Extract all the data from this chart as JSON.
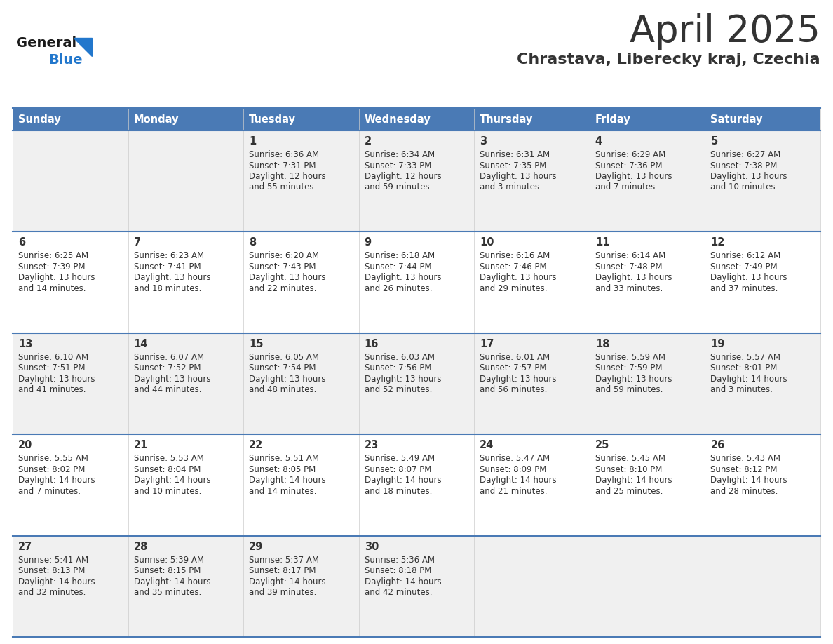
{
  "title": "April 2025",
  "subtitle": "Chrastava, Liberecky kraj, Czechia",
  "days_of_week": [
    "Sunday",
    "Monday",
    "Tuesday",
    "Wednesday",
    "Thursday",
    "Friday",
    "Saturday"
  ],
  "header_bg": "#4a7ab5",
  "header_text": "#ffffff",
  "row_bg_odd": "#f0f0f0",
  "row_bg_even": "#ffffff",
  "cell_text": "#333333",
  "line_color": "#4a7ab5",
  "logo_general_color": "#1a1a1a",
  "logo_blue_color": "#2277cc",
  "weeks": [
    {
      "days": [
        {
          "date": "",
          "sunrise": "",
          "sunset": "",
          "daylight1": "",
          "daylight2": ""
        },
        {
          "date": "",
          "sunrise": "",
          "sunset": "",
          "daylight1": "",
          "daylight2": ""
        },
        {
          "date": "1",
          "sunrise": "Sunrise: 6:36 AM",
          "sunset": "Sunset: 7:31 PM",
          "daylight1": "Daylight: 12 hours",
          "daylight2": "and 55 minutes."
        },
        {
          "date": "2",
          "sunrise": "Sunrise: 6:34 AM",
          "sunset": "Sunset: 7:33 PM",
          "daylight1": "Daylight: 12 hours",
          "daylight2": "and 59 minutes."
        },
        {
          "date": "3",
          "sunrise": "Sunrise: 6:31 AM",
          "sunset": "Sunset: 7:35 PM",
          "daylight1": "Daylight: 13 hours",
          "daylight2": "and 3 minutes."
        },
        {
          "date": "4",
          "sunrise": "Sunrise: 6:29 AM",
          "sunset": "Sunset: 7:36 PM",
          "daylight1": "Daylight: 13 hours",
          "daylight2": "and 7 minutes."
        },
        {
          "date": "5",
          "sunrise": "Sunrise: 6:27 AM",
          "sunset": "Sunset: 7:38 PM",
          "daylight1": "Daylight: 13 hours",
          "daylight2": "and 10 minutes."
        }
      ]
    },
    {
      "days": [
        {
          "date": "6",
          "sunrise": "Sunrise: 6:25 AM",
          "sunset": "Sunset: 7:39 PM",
          "daylight1": "Daylight: 13 hours",
          "daylight2": "and 14 minutes."
        },
        {
          "date": "7",
          "sunrise": "Sunrise: 6:23 AM",
          "sunset": "Sunset: 7:41 PM",
          "daylight1": "Daylight: 13 hours",
          "daylight2": "and 18 minutes."
        },
        {
          "date": "8",
          "sunrise": "Sunrise: 6:20 AM",
          "sunset": "Sunset: 7:43 PM",
          "daylight1": "Daylight: 13 hours",
          "daylight2": "and 22 minutes."
        },
        {
          "date": "9",
          "sunrise": "Sunrise: 6:18 AM",
          "sunset": "Sunset: 7:44 PM",
          "daylight1": "Daylight: 13 hours",
          "daylight2": "and 26 minutes."
        },
        {
          "date": "10",
          "sunrise": "Sunrise: 6:16 AM",
          "sunset": "Sunset: 7:46 PM",
          "daylight1": "Daylight: 13 hours",
          "daylight2": "and 29 minutes."
        },
        {
          "date": "11",
          "sunrise": "Sunrise: 6:14 AM",
          "sunset": "Sunset: 7:48 PM",
          "daylight1": "Daylight: 13 hours",
          "daylight2": "and 33 minutes."
        },
        {
          "date": "12",
          "sunrise": "Sunrise: 6:12 AM",
          "sunset": "Sunset: 7:49 PM",
          "daylight1": "Daylight: 13 hours",
          "daylight2": "and 37 minutes."
        }
      ]
    },
    {
      "days": [
        {
          "date": "13",
          "sunrise": "Sunrise: 6:10 AM",
          "sunset": "Sunset: 7:51 PM",
          "daylight1": "Daylight: 13 hours",
          "daylight2": "and 41 minutes."
        },
        {
          "date": "14",
          "sunrise": "Sunrise: 6:07 AM",
          "sunset": "Sunset: 7:52 PM",
          "daylight1": "Daylight: 13 hours",
          "daylight2": "and 44 minutes."
        },
        {
          "date": "15",
          "sunrise": "Sunrise: 6:05 AM",
          "sunset": "Sunset: 7:54 PM",
          "daylight1": "Daylight: 13 hours",
          "daylight2": "and 48 minutes."
        },
        {
          "date": "16",
          "sunrise": "Sunrise: 6:03 AM",
          "sunset": "Sunset: 7:56 PM",
          "daylight1": "Daylight: 13 hours",
          "daylight2": "and 52 minutes."
        },
        {
          "date": "17",
          "sunrise": "Sunrise: 6:01 AM",
          "sunset": "Sunset: 7:57 PM",
          "daylight1": "Daylight: 13 hours",
          "daylight2": "and 56 minutes."
        },
        {
          "date": "18",
          "sunrise": "Sunrise: 5:59 AM",
          "sunset": "Sunset: 7:59 PM",
          "daylight1": "Daylight: 13 hours",
          "daylight2": "and 59 minutes."
        },
        {
          "date": "19",
          "sunrise": "Sunrise: 5:57 AM",
          "sunset": "Sunset: 8:01 PM",
          "daylight1": "Daylight: 14 hours",
          "daylight2": "and 3 minutes."
        }
      ]
    },
    {
      "days": [
        {
          "date": "20",
          "sunrise": "Sunrise: 5:55 AM",
          "sunset": "Sunset: 8:02 PM",
          "daylight1": "Daylight: 14 hours",
          "daylight2": "and 7 minutes."
        },
        {
          "date": "21",
          "sunrise": "Sunrise: 5:53 AM",
          "sunset": "Sunset: 8:04 PM",
          "daylight1": "Daylight: 14 hours",
          "daylight2": "and 10 minutes."
        },
        {
          "date": "22",
          "sunrise": "Sunrise: 5:51 AM",
          "sunset": "Sunset: 8:05 PM",
          "daylight1": "Daylight: 14 hours",
          "daylight2": "and 14 minutes."
        },
        {
          "date": "23",
          "sunrise": "Sunrise: 5:49 AM",
          "sunset": "Sunset: 8:07 PM",
          "daylight1": "Daylight: 14 hours",
          "daylight2": "and 18 minutes."
        },
        {
          "date": "24",
          "sunrise": "Sunrise: 5:47 AM",
          "sunset": "Sunset: 8:09 PM",
          "daylight1": "Daylight: 14 hours",
          "daylight2": "and 21 minutes."
        },
        {
          "date": "25",
          "sunrise": "Sunrise: 5:45 AM",
          "sunset": "Sunset: 8:10 PM",
          "daylight1": "Daylight: 14 hours",
          "daylight2": "and 25 minutes."
        },
        {
          "date": "26",
          "sunrise": "Sunrise: 5:43 AM",
          "sunset": "Sunset: 8:12 PM",
          "daylight1": "Daylight: 14 hours",
          "daylight2": "and 28 minutes."
        }
      ]
    },
    {
      "days": [
        {
          "date": "27",
          "sunrise": "Sunrise: 5:41 AM",
          "sunset": "Sunset: 8:13 PM",
          "daylight1": "Daylight: 14 hours",
          "daylight2": "and 32 minutes."
        },
        {
          "date": "28",
          "sunrise": "Sunrise: 5:39 AM",
          "sunset": "Sunset: 8:15 PM",
          "daylight1": "Daylight: 14 hours",
          "daylight2": "and 35 minutes."
        },
        {
          "date": "29",
          "sunrise": "Sunrise: 5:37 AM",
          "sunset": "Sunset: 8:17 PM",
          "daylight1": "Daylight: 14 hours",
          "daylight2": "and 39 minutes."
        },
        {
          "date": "30",
          "sunrise": "Sunrise: 5:36 AM",
          "sunset": "Sunset: 8:18 PM",
          "daylight1": "Daylight: 14 hours",
          "daylight2": "and 42 minutes."
        },
        {
          "date": "",
          "sunrise": "",
          "sunset": "",
          "daylight1": "",
          "daylight2": ""
        },
        {
          "date": "",
          "sunrise": "",
          "sunset": "",
          "daylight1": "",
          "daylight2": ""
        },
        {
          "date": "",
          "sunrise": "",
          "sunset": "",
          "daylight1": "",
          "daylight2": ""
        }
      ]
    }
  ]
}
